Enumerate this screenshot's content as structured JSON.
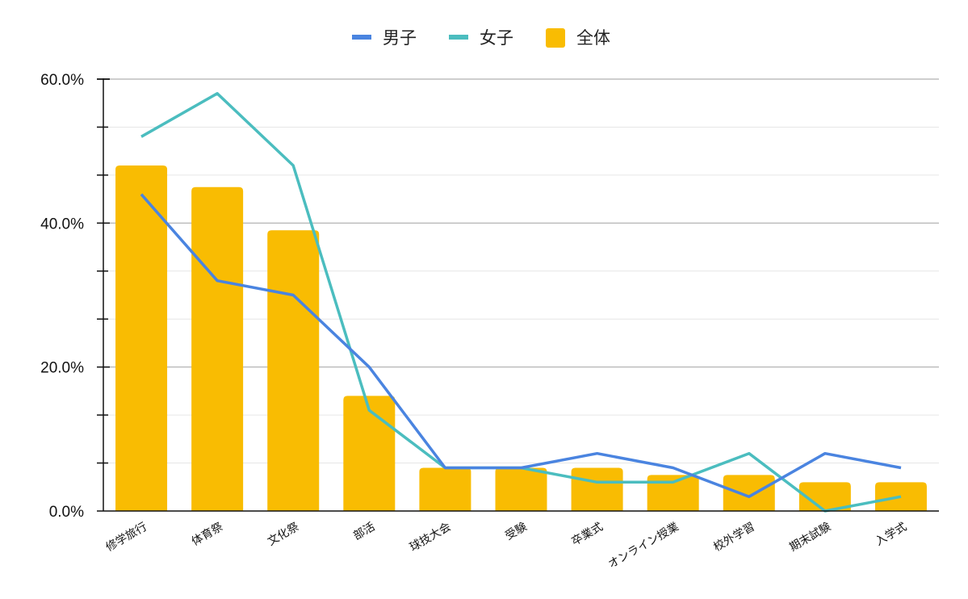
{
  "chart_data": {
    "type": "bar",
    "categories": [
      "修学旅行",
      "体育祭",
      "文化祭",
      "部活",
      "球技大会",
      "受験",
      "卒業式",
      "オンライン授業",
      "校外学習",
      "期末試験",
      "入学式"
    ],
    "series": [
      {
        "name": "男子",
        "type": "line",
        "color": "#4a84e0",
        "values": [
          44,
          32,
          30,
          20,
          6,
          6,
          8,
          6,
          2,
          8,
          6
        ]
      },
      {
        "name": "女子",
        "type": "line",
        "color": "#4bbdbf",
        "values": [
          52,
          58,
          48,
          14,
          6,
          6,
          4,
          4,
          8,
          0,
          2
        ]
      },
      {
        "name": "全体",
        "type": "bar",
        "color": "#f9bc02",
        "values": [
          48,
          45,
          39,
          16,
          6,
          6,
          6,
          5,
          5,
          4,
          4
        ]
      }
    ],
    "yticks": [
      "0.0%",
      "20.0%",
      "40.0%",
      "60.0%"
    ],
    "ylim": [
      0,
      60
    ],
    "legend_position": "top-center",
    "grid": true
  }
}
